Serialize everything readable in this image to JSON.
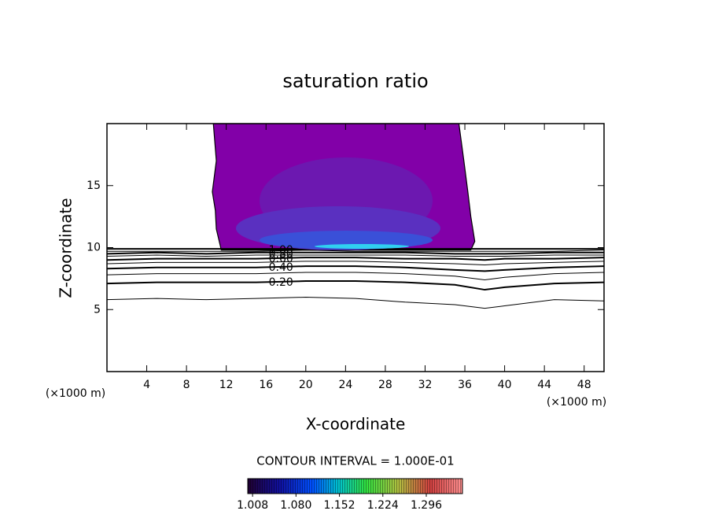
{
  "chart_data": {
    "type": "contour",
    "title": "saturation ratio",
    "xlabel": "X-coordinate",
    "ylabel": "Z-coordinate",
    "x_unit_left": "(×1000 m)",
    "x_unit_right": "(×1000 m)",
    "xlim": [
      0,
      50
    ],
    "ylim": [
      0,
      20
    ],
    "xticks": [
      4,
      8,
      12,
      16,
      20,
      24,
      28,
      32,
      36,
      40,
      44,
      48
    ],
    "yticks": [
      5,
      10,
      15
    ],
    "contour_x": [
      0,
      5,
      10,
      15,
      20,
      25,
      30,
      35,
      38,
      40,
      45,
      50
    ],
    "contours": [
      {
        "level": 0.1,
        "y": [
          5.8,
          5.9,
          5.8,
          5.9,
          6.0,
          5.9,
          5.6,
          5.4,
          5.1,
          5.3,
          5.8,
          5.7
        ]
      },
      {
        "level": {
          "value": 0.2,
          "label": "0.20"
        },
        "y": [
          7.1,
          7.2,
          7.2,
          7.2,
          7.3,
          7.3,
          7.2,
          7.0,
          6.6,
          6.8,
          7.1,
          7.2
        ]
      },
      {
        "level": 0.3,
        "y": [
          7.8,
          7.9,
          7.9,
          7.9,
          8.0,
          8.0,
          7.9,
          7.7,
          7.4,
          7.6,
          7.9,
          8.0
        ]
      },
      {
        "level": {
          "value": 0.4,
          "label": "0.40"
        },
        "y": [
          8.3,
          8.4,
          8.4,
          8.4,
          8.5,
          8.5,
          8.4,
          8.2,
          8.1,
          8.2,
          8.4,
          8.5
        ]
      },
      {
        "level": 0.5,
        "y": [
          8.7,
          8.8,
          8.8,
          8.8,
          8.9,
          8.9,
          8.8,
          8.7,
          8.6,
          8.7,
          8.8,
          8.9
        ]
      },
      {
        "level": {
          "value": 0.6,
          "label": "0.60"
        },
        "y": [
          9.0,
          9.1,
          9.1,
          9.1,
          9.2,
          9.2,
          9.1,
          9.1,
          9.0,
          9.1,
          9.1,
          9.2
        ]
      },
      {
        "level": 0.7,
        "y": [
          9.3,
          9.4,
          9.3,
          9.4,
          9.4,
          9.4,
          9.4,
          9.3,
          9.3,
          9.3,
          9.4,
          9.4
        ]
      },
      {
        "level": {
          "value": 0.8,
          "label": "0.80"
        },
        "y": [
          9.5,
          9.6,
          9.5,
          9.6,
          9.6,
          9.6,
          9.6,
          9.5,
          9.5,
          9.5,
          9.6,
          9.6
        ]
      },
      {
        "level": 0.9,
        "y": [
          9.7,
          9.7,
          9.7,
          9.7,
          9.8,
          9.7,
          9.7,
          9.7,
          9.7,
          9.7,
          9.7,
          9.8
        ]
      },
      {
        "level": {
          "value": 1.0,
          "label": "1.00"
        },
        "y": [
          9.9,
          9.9,
          9.9,
          9.9,
          9.9,
          9.9,
          9.9,
          9.9,
          9.9,
          9.9,
          9.9,
          9.9
        ]
      }
    ],
    "cloud": {
      "color": "#8200a8",
      "x": [
        11.5,
        11.0,
        10.9,
        10.6,
        11.0,
        10.7,
        35.4,
        35.9,
        36.3,
        36.6,
        37.0,
        36.6
      ],
      "z": [
        9.8,
        11.5,
        13.0,
        14.5,
        17.0,
        20.0,
        20.0,
        17.0,
        14.5,
        12.5,
        10.5,
        9.8
      ]
    },
    "contour_interval": "CONTOUR INTERVAL = 1.000E-01",
    "colorbar": {
      "lim": [
        1.0,
        1.356
      ],
      "ticks": [
        1.008,
        {
          "value": 1.08,
          "label": "1.080"
        },
        1.152,
        1.224,
        1.296
      ]
    }
  }
}
